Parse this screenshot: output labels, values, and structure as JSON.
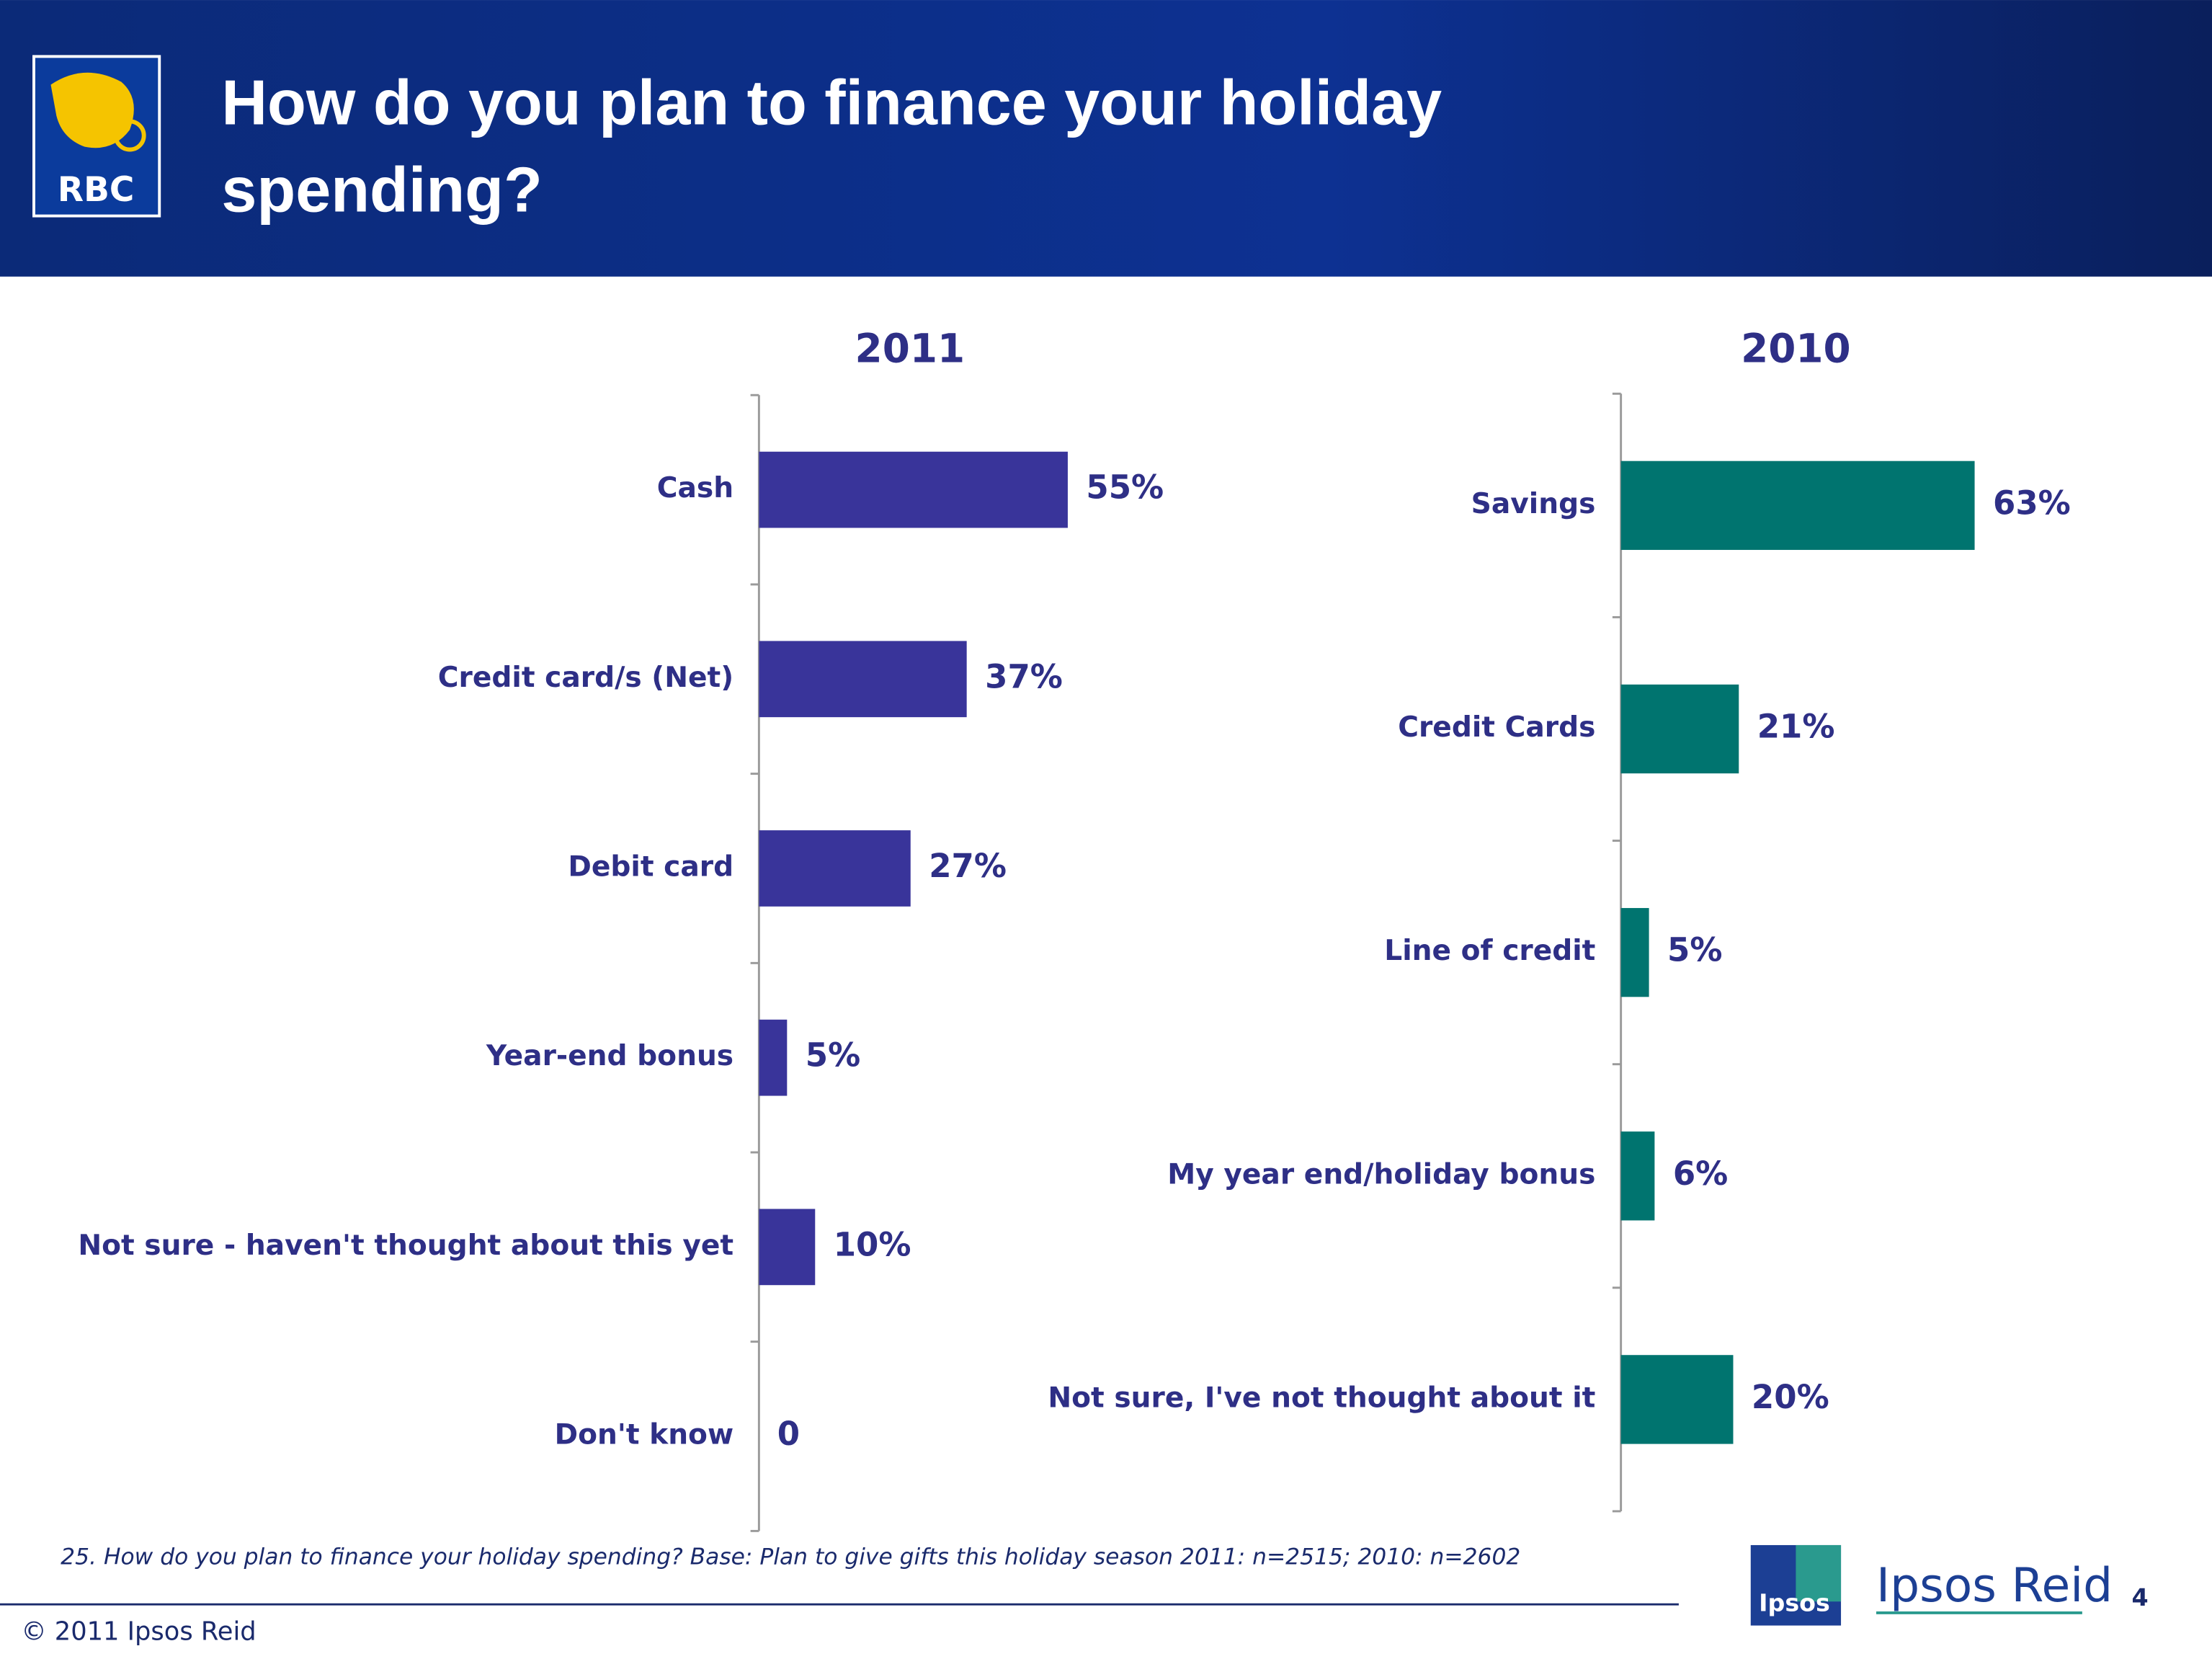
{
  "header": {
    "title": "How do you plan to finance your holiday spending?",
    "logo": "RBC"
  },
  "chart_data": [
    {
      "type": "bar",
      "orientation": "horizontal",
      "title": "2011",
      "categories": [
        "Cash",
        "Credit card/s (Net)",
        "Debit card",
        "Year-end bonus",
        "Not sure - haven't thought about this yet",
        "Don't know"
      ],
      "values": [
        55,
        37,
        27,
        5,
        10,
        0
      ],
      "value_labels": [
        "55%",
        "37%",
        "27%",
        "5%",
        "10%",
        "0"
      ],
      "color": "#39349a",
      "xlim": [
        0,
        100
      ]
    },
    {
      "type": "bar",
      "orientation": "horizontal",
      "title": "2010",
      "categories": [
        "Savings",
        "Credit Cards",
        "Line of credit",
        "My year end/holiday bonus",
        "Not sure, I've not thought about it"
      ],
      "values": [
        63,
        21,
        5,
        6,
        20
      ],
      "value_labels": [
        "63%",
        "21%",
        "5%",
        "6%",
        "20%"
      ],
      "color": "#00746f",
      "xlim": [
        0,
        100
      ]
    }
  ],
  "footer": {
    "note": "25. How do you plan to finance your holiday spending? Base: Plan to give gifts this holiday season  2011: n=2515; 2010: n=2602",
    "copyright": "© 2011 Ipsos Reid",
    "brand_small": "Ipsos",
    "brand": "Ipsos Reid",
    "page": "4"
  }
}
